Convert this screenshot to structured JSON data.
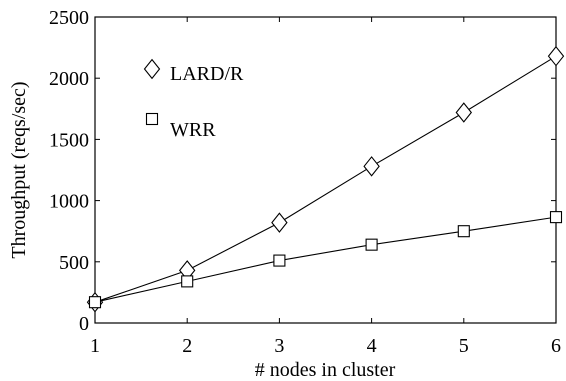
{
  "chart_data": {
    "type": "line",
    "title": "",
    "xlabel": "# nodes in cluster",
    "ylabel": "Throughput (reqs/sec)",
    "x": [
      1,
      2,
      3,
      4,
      5,
      6
    ],
    "xlim": [
      1,
      6
    ],
    "ylim": [
      0,
      2500
    ],
    "xticks": [
      1,
      2,
      3,
      4,
      5,
      6
    ],
    "yticks": [
      0,
      500,
      1000,
      1500,
      2000,
      2500
    ],
    "xtick_labels": [
      "1",
      "2",
      "3",
      "4",
      "5",
      "6"
    ],
    "ytick_labels": [
      "0",
      "500",
      "1000",
      "1500",
      "2000",
      "2500"
    ],
    "grid": false,
    "legend_position": "top-left",
    "series": [
      {
        "name": "LARD/R",
        "marker": "diamond",
        "values": [
          170,
          430,
          820,
          1280,
          1720,
          2180
        ]
      },
      {
        "name": "WRR",
        "marker": "square",
        "values": [
          170,
          340,
          510,
          640,
          750,
          865
        ]
      }
    ],
    "colors": {
      "line": "#000000",
      "axis": "#000000",
      "background": "#ffffff"
    }
  }
}
